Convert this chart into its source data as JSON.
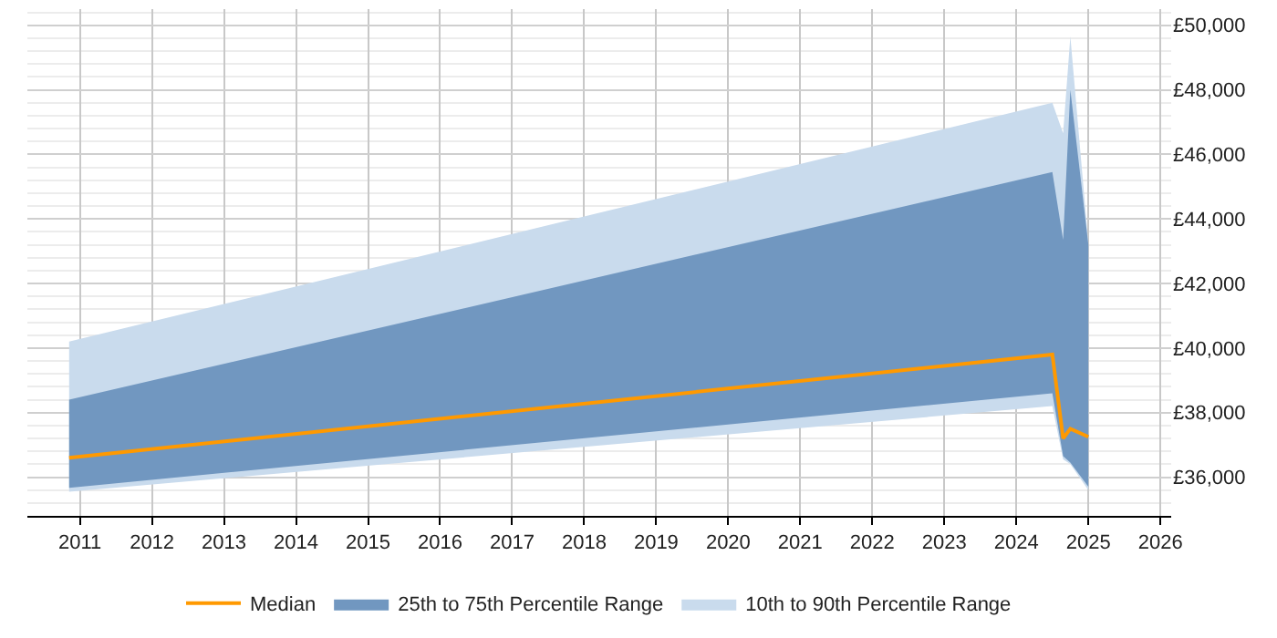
{
  "chart_data": {
    "type": "line",
    "x": [
      2010.85,
      2024.5,
      2024.65,
      2024.75,
      2025.0
    ],
    "series": [
      {
        "name": "10th to 90th Percentile Range",
        "type": "area",
        "color": "#c9dbed",
        "values": [
          null,
          null,
          null,
          null,
          null
        ],
        "lower": [
          35550,
          38200,
          36550,
          36400,
          35600
        ],
        "upper": [
          40200,
          47600,
          46650,
          49650,
          43250
        ]
      },
      {
        "name": "25th to 75th Percentile Range",
        "type": "area",
        "color": "#7197c0",
        "values": [
          null,
          null,
          null,
          null,
          null
        ],
        "lower": [
          35670,
          38600,
          36650,
          36450,
          35700
        ],
        "upper": [
          38400,
          45450,
          43350,
          48000,
          43200
        ]
      },
      {
        "name": "Median",
        "color": "#ff9900",
        "values": [
          36600,
          39800,
          37200,
          37500,
          37250
        ]
      }
    ],
    "xlim": [
      2010.27,
      2026.15
    ],
    "xticks": [
      2011,
      2012,
      2013,
      2014,
      2015,
      2016,
      2017,
      2018,
      2019,
      2020,
      2021,
      2022,
      2023,
      2024,
      2025,
      2026
    ],
    "ylim": [
      34800,
      50500
    ],
    "yticks": [
      {
        "value": 36000,
        "label": "£36,000"
      },
      {
        "value": 38000,
        "label": "£38,000"
      },
      {
        "value": 40000,
        "label": "£40,000"
      },
      {
        "value": 42000,
        "label": "£42,000"
      },
      {
        "value": 44000,
        "label": "£44,000"
      },
      {
        "value": 46000,
        "label": "£46,000"
      },
      {
        "value": 48000,
        "label": "£48,000"
      },
      {
        "value": 50000,
        "label": "£50,000"
      }
    ],
    "grid": true,
    "legend": "bottom",
    "marker": "none",
    "line_style": "solid"
  }
}
